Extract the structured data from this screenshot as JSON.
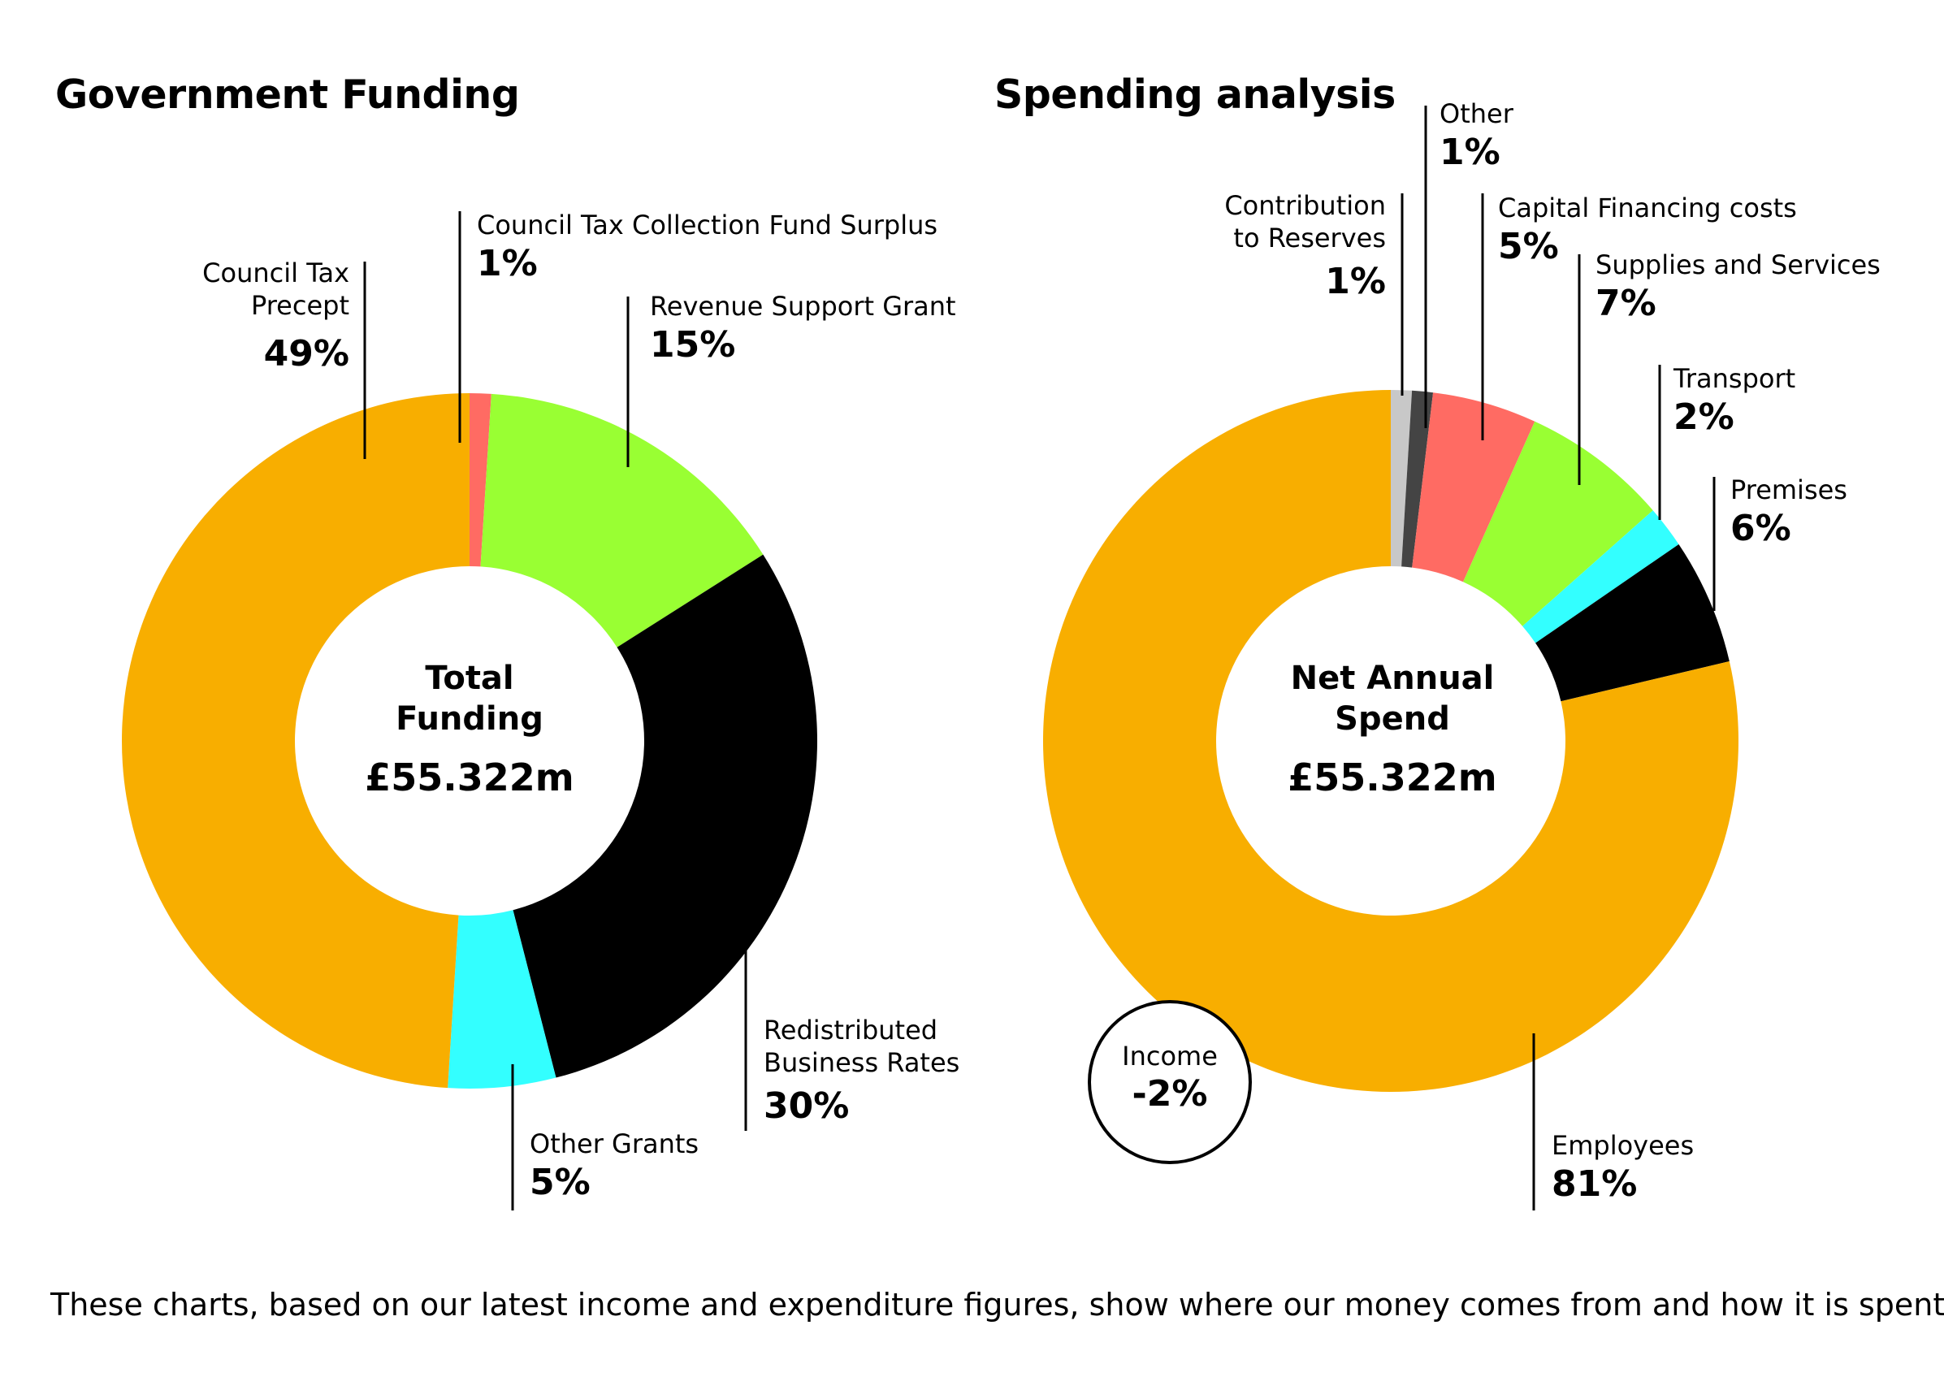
{
  "footer": "These charts, based on our latest income and expenditure figures, show where our money comes from and how it is spent.",
  "chart_data": [
    {
      "type": "pie",
      "title": "Government Funding",
      "center": {
        "label_lines": [
          "Total",
          "Funding"
        ],
        "value": "£55.322m"
      },
      "slices": [
        {
          "name": "Council Tax Collection Fund Surplus",
          "value": 1,
          "label": "1%",
          "color": "#ff6b63"
        },
        {
          "name": "Revenue Support Grant",
          "value": 15,
          "label": "15%",
          "color": "#99ff33"
        },
        {
          "name": "Redistributed\nBusiness Rates",
          "value": 30,
          "label": "30%",
          "color": "#000000"
        },
        {
          "name": "Other Grants",
          "value": 5,
          "label": "5%",
          "color": "#33ffff"
        },
        {
          "name": "Council Tax\nPrecept",
          "value": 49,
          "label": "49%",
          "color": "#f8ae00"
        }
      ]
    },
    {
      "type": "pie",
      "title": "Spending analysis",
      "center": {
        "label_lines": [
          "Net Annual",
          "Spend"
        ],
        "value": "£55.322m"
      },
      "slices": [
        {
          "name": "Contribution\nto Reserves",
          "value": 1,
          "label": "1%",
          "color": "#c8c8c8"
        },
        {
          "name": "Other",
          "value": 1,
          "label": "1%",
          "color": "#444444"
        },
        {
          "name": "Capital Financing costs",
          "value": 5,
          "label": "5%",
          "color": "#ff6b63"
        },
        {
          "name": "Supplies and Services",
          "value": 7,
          "label": "7%",
          "color": "#99ff33"
        },
        {
          "name": "Transport",
          "value": 2,
          "label": "2%",
          "color": "#33ffff"
        },
        {
          "name": "Premises",
          "value": 6,
          "label": "6%",
          "color": "#000000"
        },
        {
          "name": "Employees",
          "value": 81,
          "label": "81%",
          "color": "#f8ae00"
        }
      ],
      "annotation": {
        "name": "Income",
        "value": -2,
        "label": "-2%"
      }
    }
  ]
}
